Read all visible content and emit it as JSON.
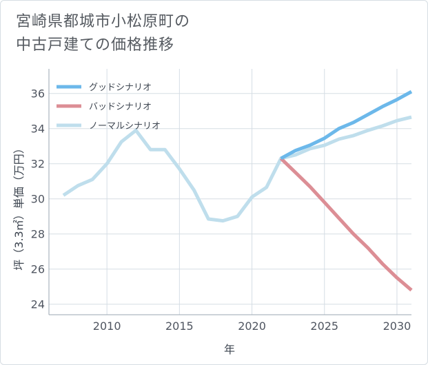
{
  "title_lines": [
    "宮崎県都城市小松原町の",
    "中古戸建ての価格推移"
  ],
  "chart_data": {
    "type": "line",
    "xlabel": "年",
    "ylabel": "坪（3.3㎡）単価（万円）",
    "xlim": [
      2006,
      2031
    ],
    "ylim": [
      23.4,
      37.4
    ],
    "xticks": [
      2010,
      2015,
      2020,
      2025,
      2030
    ],
    "yticks": [
      24,
      26,
      28,
      30,
      32,
      34,
      36
    ],
    "grid": true,
    "legend_position": "top-left",
    "series": [
      {
        "name": "グッドシナリオ",
        "color": "#6cb8ea",
        "x": [
          2022,
          2023,
          2024,
          2025,
          2026,
          2027,
          2028,
          2029,
          2030,
          2031
        ],
        "values": [
          32.3,
          32.75,
          33.05,
          33.45,
          34.0,
          34.35,
          34.8,
          35.25,
          35.65,
          36.1
        ]
      },
      {
        "name": "バッドシナリオ",
        "color": "#dc8e95",
        "x": [
          2022,
          2023,
          2024,
          2025,
          2026,
          2027,
          2028,
          2029,
          2030,
          2031
        ],
        "values": [
          32.3,
          31.5,
          30.7,
          29.8,
          28.9,
          28.0,
          27.2,
          26.3,
          25.5,
          24.8
        ]
      },
      {
        "name": "ノーマルシナリオ",
        "color": "#bfdeec",
        "x": [
          2007,
          2008,
          2009,
          2010,
          2011,
          2012,
          2013,
          2014,
          2015,
          2016,
          2017,
          2018,
          2019,
          2020,
          2021,
          2022,
          2023,
          2024,
          2025,
          2026,
          2027,
          2028,
          2029,
          2030,
          2031
        ],
        "values": [
          30.2,
          30.75,
          31.1,
          32.0,
          33.25,
          33.9,
          32.8,
          32.8,
          31.7,
          30.5,
          28.85,
          28.75,
          29.0,
          30.1,
          30.65,
          32.3,
          32.5,
          32.85,
          33.05,
          33.4,
          33.6,
          33.9,
          34.15,
          34.45,
          34.65
        ]
      }
    ]
  }
}
